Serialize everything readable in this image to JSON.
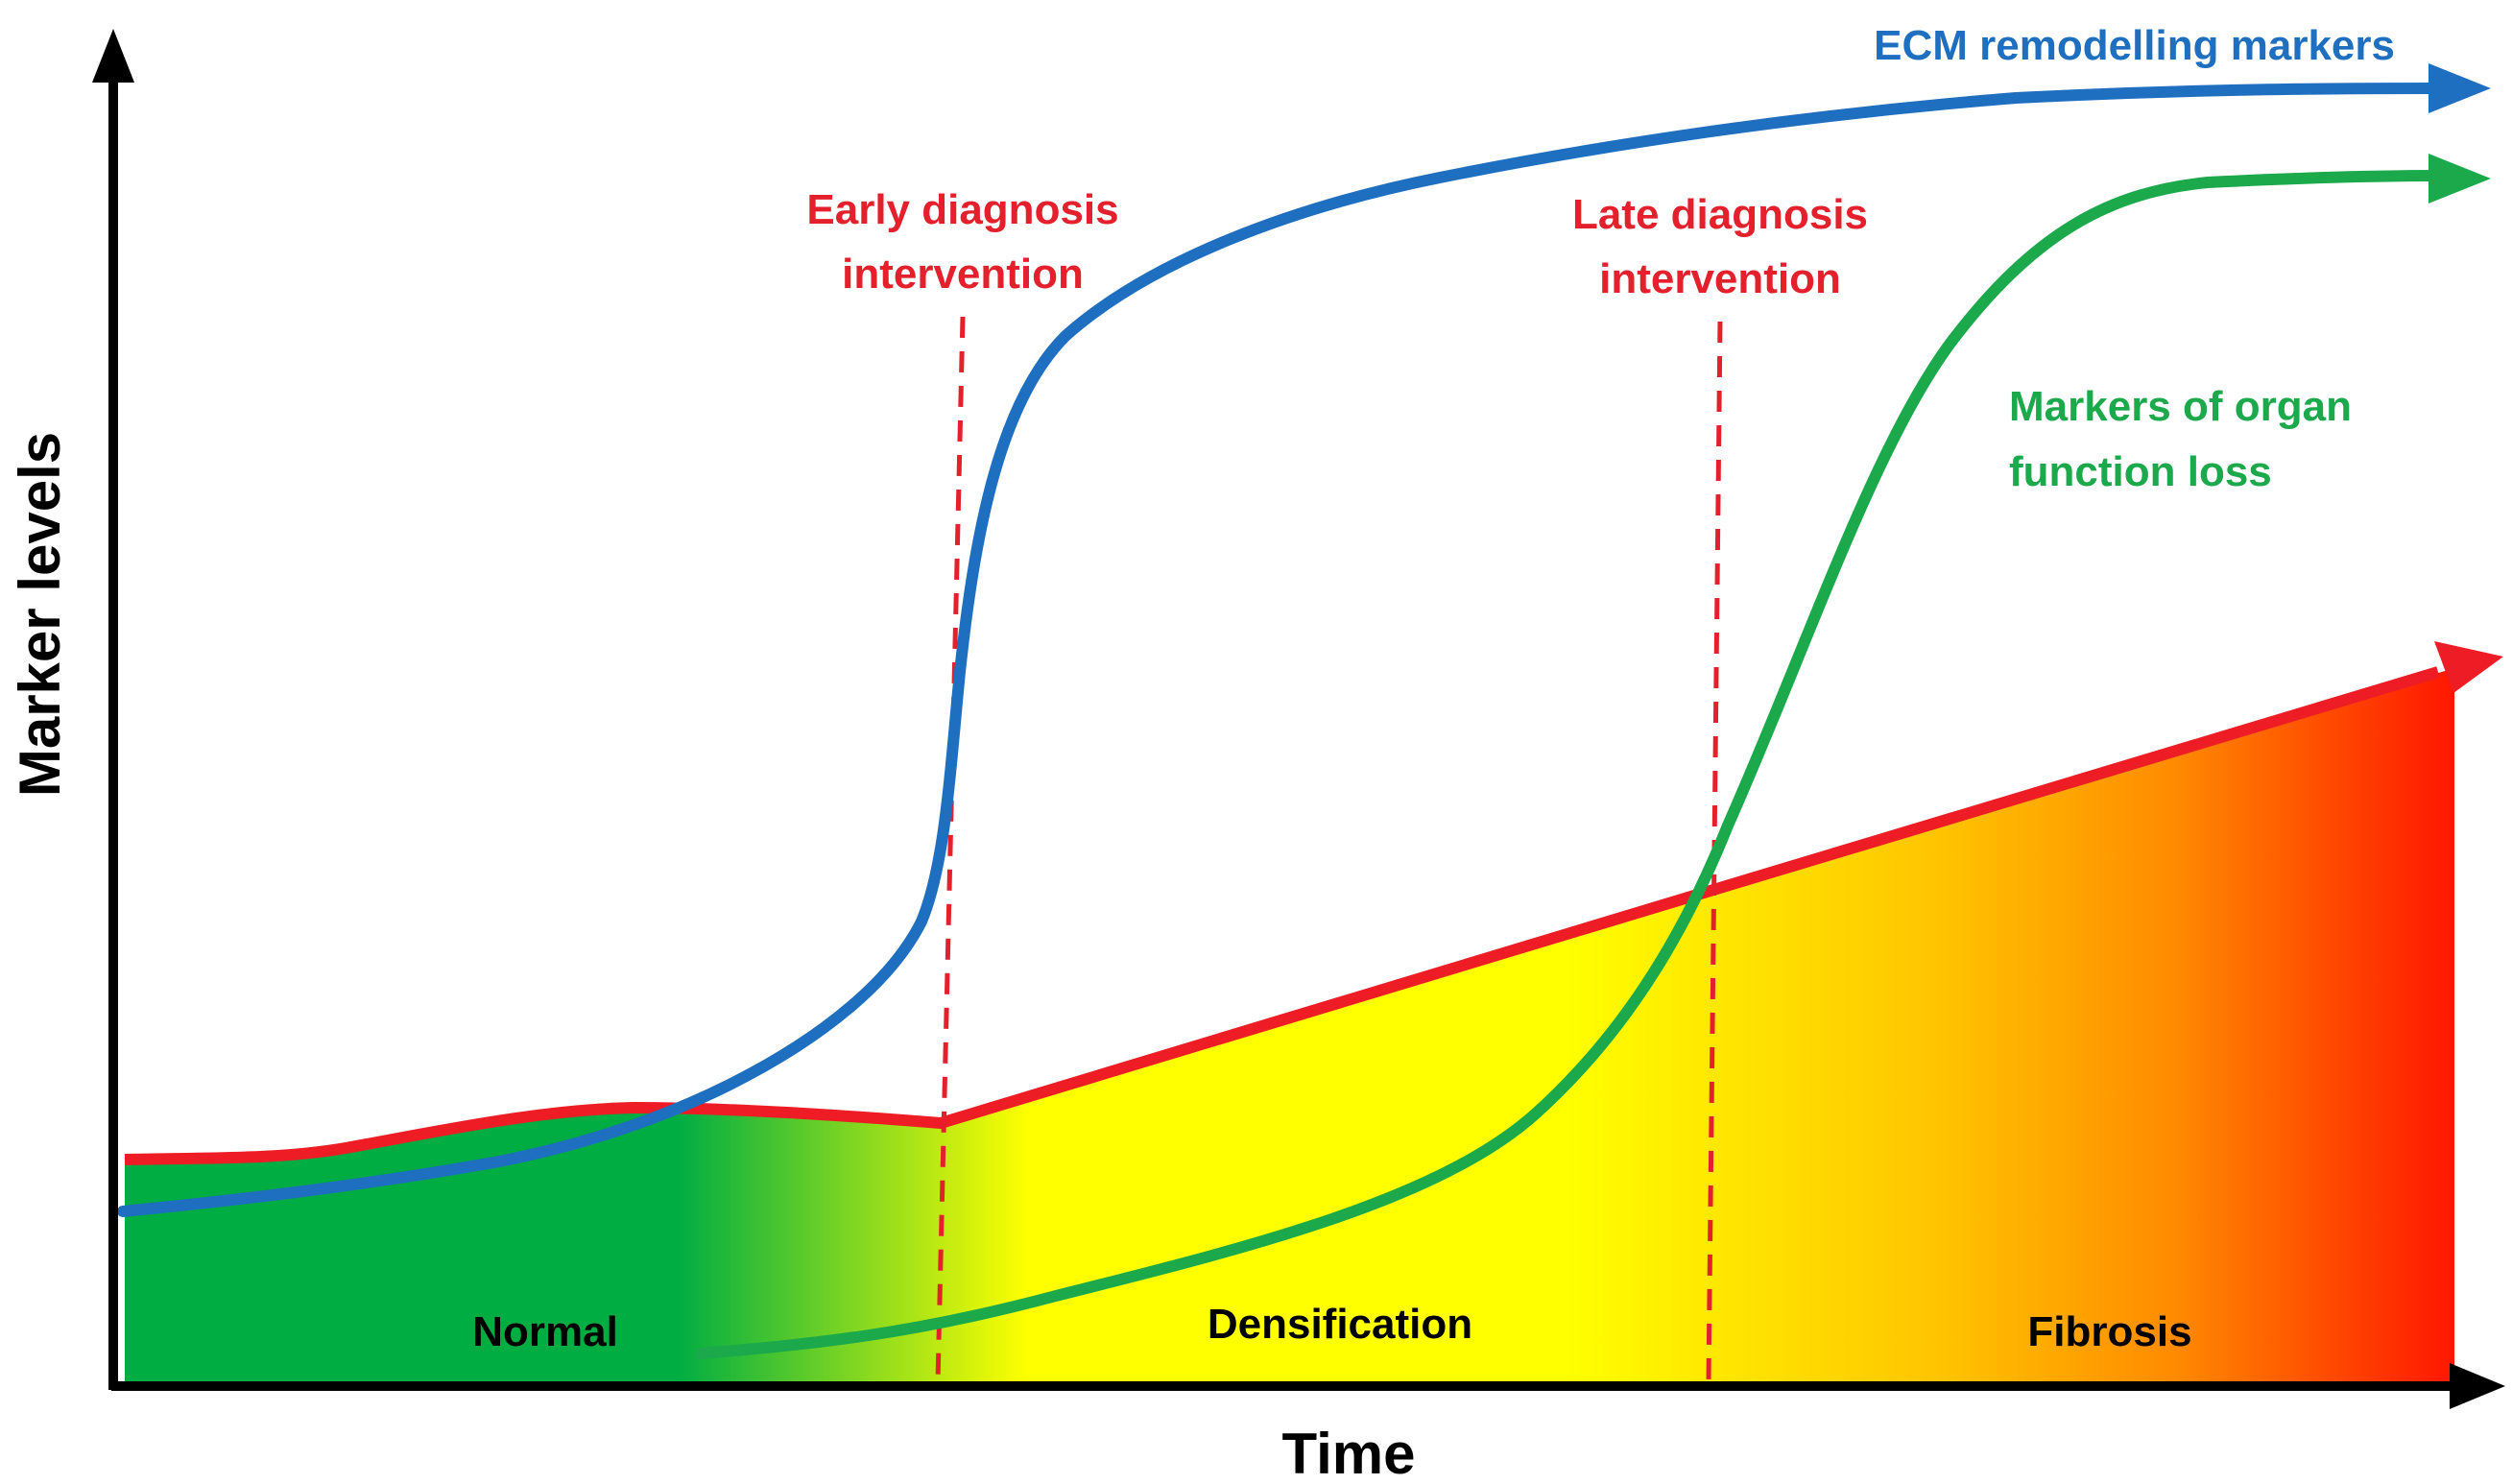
{
  "axes": {
    "x_label": "Time",
    "y_label": "Marker levels"
  },
  "phases": [
    {
      "id": "normal",
      "label": "Normal"
    },
    {
      "id": "densification",
      "label": "Densification"
    },
    {
      "id": "fibrosis",
      "label": "Fibrosis"
    }
  ],
  "interventions": {
    "early": {
      "line1": "Early diagnosis",
      "line2": "intervention"
    },
    "late": {
      "line1": "Late diagnosis",
      "line2": "intervention"
    }
  },
  "curves": {
    "ecm": {
      "label": "ECM remodelling markers",
      "color": "#1f6fc0"
    },
    "organ": {
      "line1": "Markers of organ",
      "line2": "function loss",
      "color": "#1ba94c"
    },
    "fibrosis_area": {
      "color": "#ee1c24"
    }
  },
  "colors": {
    "axis": "#000000",
    "intervention": "#e3202b",
    "normal_fill": "#00ad43",
    "densification_fill": "#ffff00",
    "fibrosis_fill": "#ff2a00"
  }
}
